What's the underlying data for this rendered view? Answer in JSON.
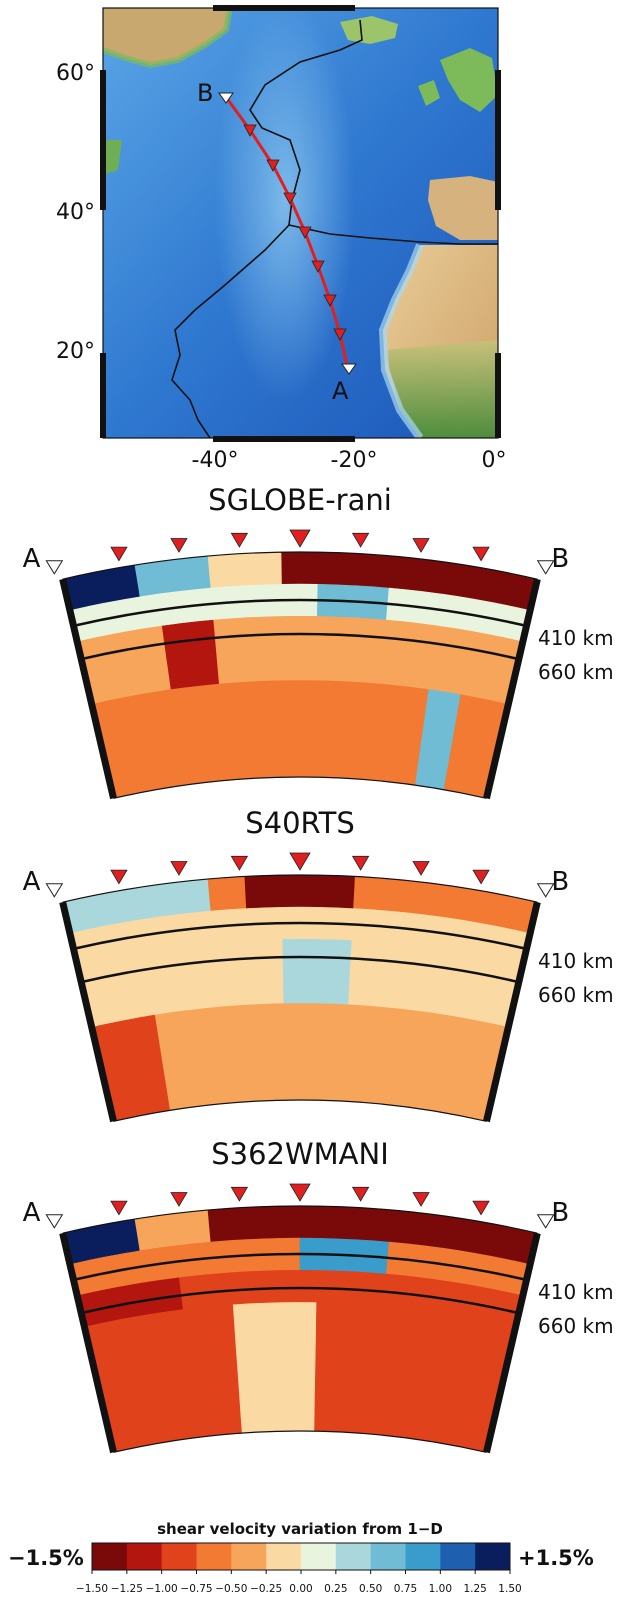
{
  "map": {
    "lat_labels": [
      "60°",
      "40°",
      "20°"
    ],
    "lon_labels": [
      "-40°",
      "-20°",
      "0°"
    ],
    "endpoint_a": "A",
    "endpoint_b": "B",
    "colors": {
      "deep_ocean": "#1f5fbf",
      "ocean": "#3f8fdb",
      "shallow_ocean": "#7fc0ef",
      "land_green": "#7cba5a",
      "land_dry": "#e7c993",
      "profile_line": "#e02020",
      "plate_boundary": "#111111"
    }
  },
  "sections": [
    {
      "title": "SGLOBE-rani",
      "label_a": "A",
      "label_b": "B",
      "depth_410": "410 km",
      "depth_660": "660 km"
    },
    {
      "title": "S40RTS",
      "label_a": "A",
      "label_b": "B",
      "depth_410": "410 km",
      "depth_660": "660 km"
    },
    {
      "title": "S362WMANI",
      "label_a": "A",
      "label_b": "B",
      "depth_410": "410 km",
      "depth_660": "660 km"
    }
  ],
  "colorbar": {
    "title": "shear velocity variation from 1−D",
    "min_label": "−1.5%",
    "max_label": "+1.5%",
    "ticks": [
      "−1.50",
      "−1.25",
      "−1.00",
      "−0.75",
      "−0.50",
      "−0.25",
      "0.00",
      "0.25",
      "0.50",
      "0.75",
      "1.00",
      "1.25",
      "1.50"
    ],
    "colors": [
      "#7a0a0a",
      "#b3160f",
      "#e0431c",
      "#f27a32",
      "#f6a55a",
      "#fad9a3",
      "#e8f4dd",
      "#a9d7dc",
      "#6fbcd4",
      "#3a9ccb",
      "#1f5fb0",
      "#0a1e5e"
    ]
  }
}
